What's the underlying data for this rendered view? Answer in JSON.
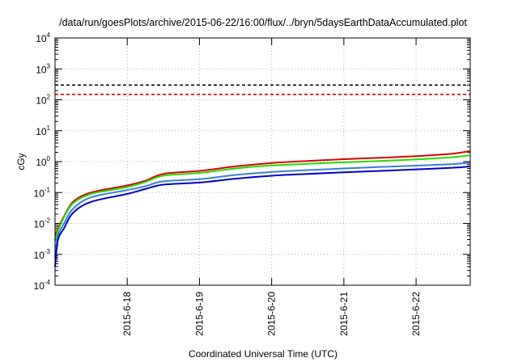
{
  "chart_data": {
    "type": "line",
    "title": "/data/run/goesPlots/archive/2015-06-22/16:00/flux/../bryn/5daysEarthDataAccumulated.plot",
    "xlabel": "Coordinated Universal Time (UTC)",
    "ylabel": "cGy",
    "y_scale": "log",
    "ylim": [
      "1e-4",
      "1e4"
    ],
    "xlim": [
      "2015-06-17 00:00",
      "2015-06-22 18:00"
    ],
    "grid": true,
    "legend": "none",
    "x_ticks": [
      "2015-6-18",
      "2015-6-19",
      "2015-6-20",
      "2015-6-21",
      "2015-6-22"
    ],
    "y_ticks": [
      {
        "value": "1e-4",
        "base": "10",
        "exp": "-4"
      },
      {
        "value": "1e-3",
        "base": "10",
        "exp": "-3"
      },
      {
        "value": "1e-2",
        "base": "10",
        "exp": "-2"
      },
      {
        "value": "1e-1",
        "base": "10",
        "exp": "-1"
      },
      {
        "value": "1e0",
        "base": "10",
        "exp": "0"
      },
      {
        "value": "1e1",
        "base": "10",
        "exp": "1"
      },
      {
        "value": "1e2",
        "base": "10",
        "exp": "2"
      },
      {
        "value": "1e3",
        "base": "10",
        "exp": "3"
      },
      {
        "value": "1e4",
        "base": "10",
        "exp": "4"
      }
    ],
    "x": [
      "2015-06-17 00:00",
      "2015-06-17 01:00",
      "2015-06-17 03:00",
      "2015-06-17 06:00",
      "2015-06-17 12:00",
      "2015-06-18 00:00",
      "2015-06-18 06:00",
      "2015-06-18 12:00",
      "2015-06-19 00:00",
      "2015-06-19 12:00",
      "2015-06-20 00:00",
      "2015-06-20 12:00",
      "2015-06-21 00:00",
      "2015-06-21 12:00",
      "2015-06-22 00:00",
      "2015-06-22 12:00",
      "2015-06-22 18:00"
    ],
    "series": [
      {
        "color": "#dd0000",
        "values": [
          0.003,
          0.007,
          0.017,
          0.05,
          0.1,
          0.17,
          0.24,
          0.4,
          0.5,
          0.7,
          0.9,
          1.05,
          1.2,
          1.33,
          1.5,
          1.8,
          2.2
        ]
      },
      {
        "color": "#22dd00",
        "values": [
          0.0025,
          0.006,
          0.016,
          0.045,
          0.09,
          0.15,
          0.22,
          0.35,
          0.43,
          0.6,
          0.75,
          0.85,
          0.95,
          1.05,
          1.18,
          1.38,
          1.6
        ]
      },
      {
        "color": "#3a7fd8",
        "values": [
          0.0008,
          0.004,
          0.01,
          0.03,
          0.07,
          0.12,
          0.16,
          0.23,
          0.27,
          0.37,
          0.46,
          0.53,
          0.6,
          0.67,
          0.74,
          0.83,
          0.92
        ]
      },
      {
        "color": "#0000cc",
        "values": [
          0.0004,
          0.003,
          0.007,
          0.022,
          0.05,
          0.09,
          0.13,
          0.18,
          0.21,
          0.28,
          0.35,
          0.4,
          0.45,
          0.5,
          0.56,
          0.63,
          0.7
        ]
      }
    ],
    "thresholds": [
      {
        "value": 300,
        "color": "#000000",
        "style": "dashed"
      },
      {
        "value": 150,
        "color": "#dd0000",
        "style": "dashed"
      }
    ]
  }
}
